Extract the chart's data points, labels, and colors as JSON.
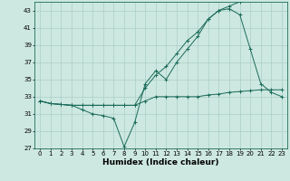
{
  "xlabel": "Humidex (Indice chaleur)",
  "bg_color": "#cde8e0",
  "grid_color": "#aacfc8",
  "line_color": "#1a6b5a",
  "xlim": [
    -0.5,
    23.5
  ],
  "ylim": [
    27,
    44
  ],
  "xticks": [
    0,
    1,
    2,
    3,
    4,
    5,
    6,
    7,
    8,
    9,
    10,
    11,
    12,
    13,
    14,
    15,
    16,
    17,
    18,
    19,
    20,
    21,
    22,
    23
  ],
  "yticks": [
    27,
    29,
    31,
    33,
    35,
    37,
    39,
    41,
    43
  ],
  "series1_x": [
    0,
    1,
    2,
    3,
    4,
    5,
    6,
    7,
    8,
    9,
    10,
    11,
    12,
    13,
    14,
    15,
    16,
    17,
    18,
    19,
    20,
    21,
    22,
    23
  ],
  "series1_y": [
    32.5,
    32.2,
    32.1,
    32.0,
    32.0,
    32.0,
    32.0,
    32.0,
    32.0,
    32.0,
    32.5,
    33.0,
    33.0,
    33.0,
    33.0,
    33.0,
    33.2,
    33.3,
    33.5,
    33.6,
    33.7,
    33.8,
    33.8,
    33.8
  ],
  "series2_x": [
    0,
    1,
    2,
    3,
    4,
    5,
    6,
    7,
    8,
    9,
    10,
    11,
    12,
    13,
    14,
    15,
    16,
    17,
    18,
    19,
    20,
    21,
    22,
    23
  ],
  "series2_y": [
    32.5,
    32.2,
    32.1,
    32.0,
    32.0,
    32.0,
    32.0,
    32.0,
    32.0,
    32.0,
    34.0,
    35.5,
    36.5,
    38.0,
    39.5,
    40.5,
    42.0,
    43.0,
    43.5,
    44.0,
    44.2,
    44.3,
    44.3,
    44.3
  ],
  "series3_x": [
    0,
    1,
    2,
    3,
    4,
    5,
    6,
    7,
    8,
    9,
    10,
    11,
    12,
    13,
    14,
    15,
    16,
    17,
    18,
    19,
    20,
    21,
    22,
    23
  ],
  "series3_y": [
    32.5,
    32.2,
    32.1,
    32.0,
    31.5,
    31.0,
    30.8,
    30.5,
    27.2,
    30.0,
    34.5,
    36.0,
    35.0,
    37.0,
    38.5,
    40.0,
    42.0,
    43.0,
    43.2,
    42.5,
    38.5,
    34.5,
    33.5,
    33.0
  ]
}
